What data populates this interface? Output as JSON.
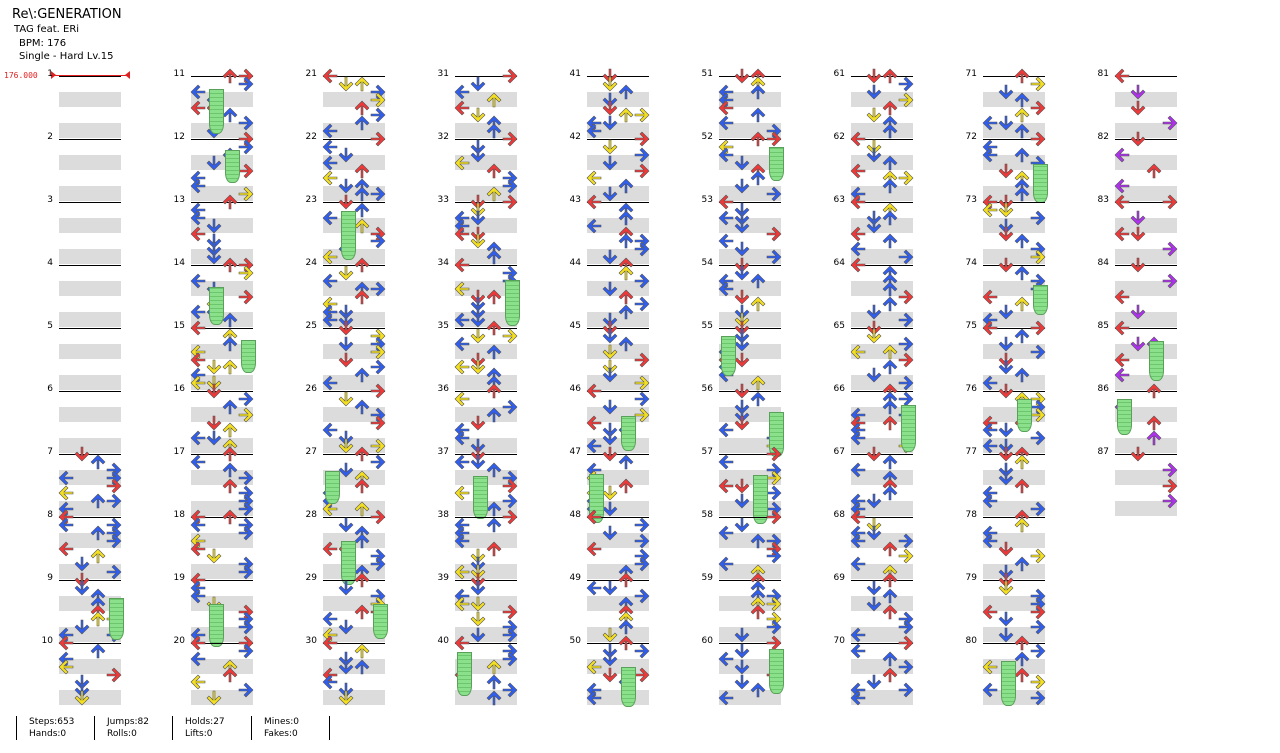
{
  "song": {
    "title": "Re\\:GENERATION",
    "artist": "TAG feat. ERi",
    "bpm_label": "BPM: 176",
    "chart_label": "Single - Hard  Lv.15",
    "bpm_marker": "176.000"
  },
  "colors": {
    "red": "#f03838",
    "blue": "#2f5ef0",
    "yellow": "#f5e020",
    "purple": "#b030f0",
    "hold": "#8be08b",
    "stripe": "#dcdcdc"
  },
  "measures": [
    "1",
    "2",
    "3",
    "4",
    "5",
    "6",
    "7",
    "8",
    "9",
    "10",
    "11",
    "12",
    "13",
    "14",
    "15",
    "16",
    "17",
    "18",
    "19",
    "20",
    "21",
    "22",
    "23",
    "24",
    "25",
    "26",
    "27",
    "28",
    "29",
    "30",
    "31",
    "32",
    "33",
    "34",
    "35",
    "36",
    "37",
    "38",
    "39",
    "40",
    "41",
    "42",
    "43",
    "44",
    "45",
    "46",
    "47",
    "48",
    "49",
    "50",
    "51",
    "52",
    "53",
    "54",
    "55",
    "56",
    "57",
    "58",
    "59",
    "60",
    "61",
    "62",
    "63",
    "64",
    "65",
    "66",
    "67",
    "68",
    "69",
    "70",
    "71",
    "72",
    "73",
    "74",
    "75",
    "76",
    "77",
    "78",
    "79",
    "80",
    "81",
    "82",
    "83",
    "84",
    "85",
    "86",
    "87"
  ],
  "stats": {
    "steps": "Steps:653",
    "hands": "Hands:0",
    "jumps": "Jumps:82",
    "rolls": "Rolls:0",
    "holds": "Holds:27",
    "lifts": "Lifts:0",
    "mines": "Mines:0",
    "fakes": "Fakes:0"
  }
}
